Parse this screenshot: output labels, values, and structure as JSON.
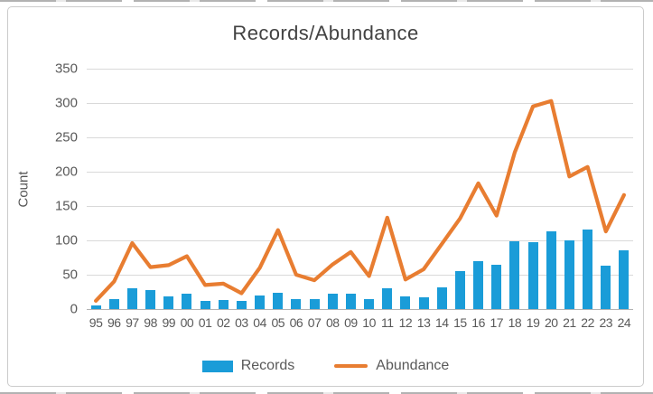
{
  "chart_data": {
    "type": "combo-bar-line",
    "title": "Records/Abundance",
    "xlabel": "",
    "ylabel": "Count",
    "categories": [
      "95",
      "96",
      "97",
      "98",
      "99",
      "00",
      "01",
      "02",
      "03",
      "04",
      "05",
      "06",
      "07",
      "08",
      "09",
      "10",
      "11",
      "12",
      "13",
      "14",
      "15",
      "16",
      "17",
      "18",
      "19",
      "20",
      "21",
      "22",
      "23",
      "24"
    ],
    "series": [
      {
        "name": "Records",
        "type": "bar",
        "color": "#1a9cd8",
        "values": [
          5,
          15,
          30,
          27,
          18,
          22,
          12,
          13,
          12,
          20,
          24,
          15,
          14,
          22,
          23,
          15,
          30,
          18,
          17,
          32,
          55,
          70,
          65,
          99,
          97,
          113,
          100,
          116,
          63,
          85
        ]
      },
      {
        "name": "Abundance",
        "type": "line",
        "color": "#e87d31",
        "values": [
          12,
          40,
          96,
          61,
          64,
          77,
          35,
          37,
          23,
          60,
          115,
          50,
          42,
          65,
          83,
          48,
          133,
          43,
          58,
          95,
          132,
          183,
          136,
          228,
          295,
          303,
          193,
          207,
          113,
          166
        ]
      }
    ],
    "y_axis": {
      "min": 0,
      "max": 350,
      "step": 50,
      "ticks": [
        0,
        50,
        100,
        150,
        200,
        250,
        300,
        350
      ]
    },
    "grid": true,
    "gridline_color": "#d9d9d9",
    "axis_line_color": "#b3b3b3",
    "legend_position": "bottom"
  }
}
